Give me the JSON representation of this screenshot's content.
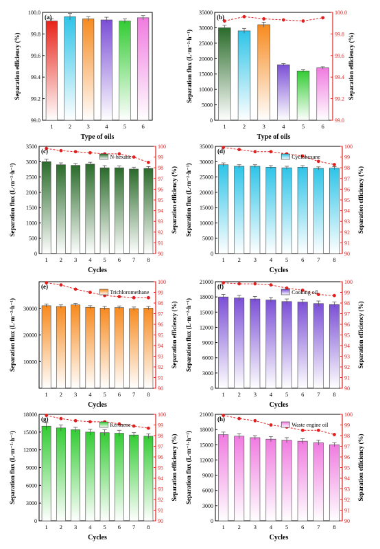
{
  "chart_data": [
    {
      "panel": "(a)",
      "type": "bar",
      "xlabel": "Type of oils",
      "categories": [
        "1",
        "2",
        "3",
        "4",
        "5",
        "6"
      ],
      "series": [
        {
          "axis": "y",
          "values": [
            99.92,
            99.96,
            99.94,
            99.93,
            99.92,
            99.95
          ],
          "errors": [
            0.02,
            0.03,
            0.02,
            0.025,
            0.02,
            0.02
          ]
        }
      ],
      "y": {
        "label": "Separation efficiency (%)",
        "min": 99.0,
        "max": 100.0,
        "ticks": [
          99.0,
          99.2,
          99.4,
          99.6,
          99.8,
          100.0
        ],
        "decimals": 1
      },
      "bar_colors": [
        "#e8231a",
        "#2ec4e8",
        "#f78a1e",
        "#7b4fd6",
        "#33cc33",
        "#f07be0"
      ]
    },
    {
      "panel": "(b)",
      "type": "bar+line",
      "xlabel": "Type of oils",
      "categories": [
        "1",
        "2",
        "3",
        "4",
        "5",
        "6"
      ],
      "series": [
        {
          "axis": "y",
          "values": [
            30000,
            29000,
            31000,
            18000,
            16000,
            17000
          ],
          "errors": [
            800,
            800,
            800,
            400,
            400,
            400
          ]
        },
        {
          "axis": "y2",
          "values": [
            99.92,
            99.96,
            99.94,
            99.93,
            99.92,
            99.95
          ],
          "errors": [
            0.015,
            0.015,
            0.015,
            0.015,
            0.015,
            0.015
          ]
        }
      ],
      "y": {
        "label": "Separation flux (L·m⁻²·h⁻¹)",
        "min": 0,
        "max": 35000,
        "ticks": [
          0,
          5000,
          10000,
          15000,
          20000,
          25000,
          30000,
          35000
        ],
        "decimals": 0
      },
      "y2": {
        "label": "Separation efficiency (%)",
        "min": 99.0,
        "max": 100.0,
        "ticks": [
          99.0,
          99.2,
          99.4,
          99.6,
          99.8,
          100.0
        ],
        "decimals": 1
      },
      "bar_colors": [
        "#2a6b2a",
        "#2ec4e8",
        "#f78a1e",
        "#7b4fd6",
        "#33cc33",
        "#f07be0"
      ]
    },
    {
      "panel": "(c)",
      "type": "bar+line",
      "xlabel": "Cycles",
      "legend": "N-hexane",
      "categories": [
        "1",
        "2",
        "3",
        "4",
        "5",
        "6",
        "7",
        "8"
      ],
      "series": [
        {
          "axis": "y",
          "values": [
            3000,
            2900,
            2880,
            2920,
            2800,
            2800,
            2760,
            2780
          ],
          "errors": [
            80,
            60,
            60,
            60,
            70,
            60,
            60,
            60
          ]
        },
        {
          "axis": "y2",
          "values": [
            99.8,
            99.6,
            99.5,
            99.4,
            99.3,
            99.3,
            99.0,
            98.5
          ]
        }
      ],
      "y": {
        "label": "Separation flux (L·m⁻²·h⁻¹)",
        "min": 0,
        "max": 3500,
        "ticks": [
          0,
          500,
          1000,
          1500,
          2000,
          2500,
          3000,
          3500
        ],
        "decimals": 0
      },
      "y2": {
        "label": "Separation efficiency (%)",
        "min": 90,
        "max": 100,
        "ticks": [
          90,
          91,
          92,
          93,
          94,
          95,
          96,
          97,
          98,
          99,
          100
        ],
        "decimals": 0
      },
      "bar_colors": [
        "#2a6b2a"
      ]
    },
    {
      "panel": "(d)",
      "type": "bar+line",
      "xlabel": "Cycles",
      "legend": "Cyclohexane",
      "categories": [
        "1",
        "2",
        "3",
        "4",
        "5",
        "6",
        "7",
        "8"
      ],
      "series": [
        {
          "axis": "y",
          "values": [
            29000,
            28500,
            28500,
            28200,
            28000,
            28200,
            27800,
            27900
          ],
          "errors": [
            600,
            500,
            500,
            500,
            500,
            500,
            500,
            500
          ]
        },
        {
          "axis": "y2",
          "values": [
            99.9,
            99.7,
            99.5,
            99.5,
            99.3,
            99.1,
            98.6,
            98.3
          ]
        }
      ],
      "y": {
        "label": "Separation flux (L·m⁻²·h⁻¹)",
        "min": 0,
        "max": 35000,
        "ticks": [
          0,
          5000,
          10000,
          15000,
          20000,
          25000,
          30000,
          35000
        ],
        "decimals": 0
      },
      "y2": {
        "label": "Separation efficiency (%)",
        "min": 90,
        "max": 100,
        "ticks": [
          90,
          91,
          92,
          93,
          94,
          95,
          96,
          97,
          98,
          99,
          100
        ],
        "decimals": 0
      },
      "bar_colors": [
        "#2ec4e8"
      ]
    },
    {
      "panel": "(e)",
      "type": "bar+line",
      "xlabel": "Cycles",
      "legend": "Trichloromethane",
      "categories": [
        "1",
        "2",
        "3",
        "4",
        "5",
        "6",
        "7",
        "8"
      ],
      "series": [
        {
          "axis": "y",
          "values": [
            31000,
            30700,
            31300,
            30400,
            30100,
            30300,
            29900,
            30100
          ],
          "errors": [
            600,
            600,
            600,
            600,
            600,
            600,
            600,
            600
          ]
        },
        {
          "axis": "y2",
          "values": [
            99.9,
            99.7,
            99.3,
            99.0,
            98.7,
            98.6,
            98.5,
            98.5
          ]
        }
      ],
      "y": {
        "label": "Separation flux (L·m⁻²·h⁻¹)",
        "min": 0,
        "max": 40000,
        "ticks": [
          10000,
          20000,
          30000
        ],
        "decimals": 0
      },
      "y2": {
        "label": "Separation efficiency (%)",
        "min": 90,
        "max": 100,
        "ticks": [
          90,
          91,
          92,
          93,
          94,
          95,
          96,
          97,
          98,
          99,
          100
        ],
        "decimals": 0
      },
      "bar_colors": [
        "#f78a1e"
      ]
    },
    {
      "panel": "(f)",
      "type": "bar+line",
      "xlabel": "Cycles",
      "legend": "Cooking oil",
      "categories": [
        "1",
        "2",
        "3",
        "4",
        "5",
        "6",
        "7",
        "8"
      ],
      "series": [
        {
          "axis": "y",
          "values": [
            18000,
            17800,
            17600,
            17400,
            17100,
            17000,
            16700,
            16500
          ],
          "errors": [
            500,
            500,
            500,
            500,
            500,
            500,
            500,
            500
          ]
        },
        {
          "axis": "y2",
          "values": [
            99.9,
            99.8,
            99.8,
            99.7,
            99.4,
            99.2,
            98.8,
            98.7
          ]
        }
      ],
      "y": {
        "label": "Separation flux (L·m⁻²·h⁻¹)",
        "min": 0,
        "max": 21000,
        "ticks": [
          0,
          3000,
          6000,
          9000,
          12000,
          15000,
          18000,
          21000
        ],
        "decimals": 0
      },
      "y2": {
        "label": "Separation efficiency (%)",
        "min": 90,
        "max": 100,
        "ticks": [
          90,
          91,
          92,
          93,
          94,
          95,
          96,
          97,
          98,
          99,
          100
        ],
        "decimals": 0
      },
      "bar_colors": [
        "#7b4fd6"
      ]
    },
    {
      "panel": "(g)",
      "type": "bar+line",
      "xlabel": "Cycles",
      "legend": "Kerosene",
      "categories": [
        "1",
        "2",
        "3",
        "4",
        "5",
        "6",
        "7",
        "8"
      ],
      "series": [
        {
          "axis": "y",
          "values": [
            16000,
            15700,
            15400,
            15000,
            14900,
            14800,
            14500,
            14300
          ],
          "errors": [
            600,
            500,
            400,
            500,
            500,
            500,
            400,
            400
          ]
        },
        {
          "axis": "y2",
          "values": [
            99.9,
            99.6,
            99.4,
            99.3,
            99.3,
            99.1,
            98.9,
            98.7
          ]
        }
      ],
      "y": {
        "label": "Separation flux (L·m⁻²·h⁻¹)",
        "min": 0,
        "max": 18000,
        "ticks": [
          0,
          3000,
          6000,
          9000,
          12000,
          15000,
          18000
        ],
        "decimals": 0
      },
      "y2": {
        "label": "Separation efficiency (%)",
        "min": 90,
        "max": 100,
        "ticks": [
          90,
          91,
          92,
          93,
          94,
          95,
          96,
          97,
          98,
          99,
          100
        ],
        "decimals": 0
      },
      "bar_colors": [
        "#33cc33"
      ]
    },
    {
      "panel": "(h)",
      "type": "bar+line",
      "xlabel": "Cycles",
      "legend": "Waste engine oil",
      "categories": [
        "1",
        "2",
        "3",
        "4",
        "5",
        "6",
        "7",
        "8"
      ],
      "series": [
        {
          "axis": "y",
          "values": [
            17000,
            16700,
            16400,
            16100,
            15900,
            15700,
            15400,
            15000
          ],
          "errors": [
            500,
            500,
            400,
            500,
            500,
            500,
            500,
            400
          ]
        },
        {
          "axis": "y2",
          "values": [
            99.9,
            99.6,
            99.4,
            99.0,
            98.8,
            98.5,
            98.5,
            98.1
          ]
        }
      ],
      "y": {
        "label": "Separation flux (L·m⁻²·h⁻¹)",
        "min": 0,
        "max": 21000,
        "ticks": [
          0,
          3000,
          6000,
          9000,
          12000,
          15000,
          18000,
          21000
        ],
        "decimals": 0
      },
      "y2": {
        "label": "Separation efficiency (%)",
        "min": 90,
        "max": 100,
        "ticks": [
          90,
          91,
          92,
          93,
          94,
          95,
          96,
          97,
          98,
          99,
          100
        ],
        "decimals": 0
      },
      "bar_colors": [
        "#f07be0"
      ]
    }
  ],
  "colors": {
    "efficiency_line": "#e02020",
    "efficiency_axis": "#e02020",
    "axis": "#000000"
  }
}
